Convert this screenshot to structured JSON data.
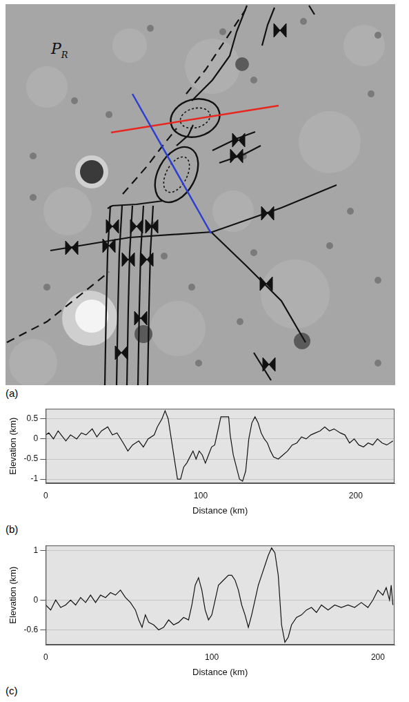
{
  "map": {
    "label": "(a)",
    "region_label": {
      "text": "P",
      "subscript": "R"
    },
    "profile_colors": [
      "#e8261e",
      "#2b3fd0"
    ]
  },
  "chart_data": [
    {
      "panel": "(b)",
      "type": "line",
      "color": "#111111",
      "grid": true,
      "x_label": "Distance (km)",
      "y_label": "Elevation (km)",
      "x": [
        0,
        2,
        5,
        8,
        10,
        13,
        16,
        20,
        23,
        26,
        30,
        33,
        36,
        40,
        43,
        46,
        50,
        53,
        56,
        60,
        63,
        66,
        70,
        72,
        75,
        77,
        79,
        81,
        83,
        85,
        87,
        89,
        91,
        93,
        95,
        97,
        99,
        101,
        103,
        105,
        107,
        109,
        111,
        113,
        116,
        118,
        119,
        121,
        123,
        125,
        127,
        129,
        131,
        133,
        135,
        137,
        139,
        141,
        143,
        145,
        147,
        150,
        153,
        156,
        159,
        162,
        165,
        168,
        171,
        174,
        177,
        180,
        183,
        186,
        190,
        193,
        196,
        199,
        202,
        205,
        208,
        211,
        214,
        217,
        220,
        224
      ],
      "values": [
        0.1,
        0.15,
        0.0,
        0.2,
        0.1,
        -0.05,
        0.1,
        0.0,
        0.15,
        0.1,
        0.25,
        0.05,
        0.2,
        0.3,
        0.1,
        0.15,
        -0.1,
        -0.3,
        -0.15,
        -0.05,
        -0.2,
        0.0,
        0.1,
        0.3,
        0.5,
        0.7,
        0.5,
        0.0,
        -0.5,
        -1.0,
        -1.0,
        -0.7,
        -0.6,
        -0.45,
        -0.3,
        -0.5,
        -0.3,
        -0.4,
        -0.6,
        -0.4,
        -0.2,
        -0.15,
        0.2,
        0.55,
        0.55,
        0.55,
        0.1,
        -0.4,
        -0.7,
        -1.0,
        -1.05,
        -0.8,
        0.0,
        0.4,
        0.55,
        0.4,
        0.15,
        0.0,
        -0.1,
        -0.3,
        -0.45,
        -0.5,
        -0.4,
        -0.3,
        -0.15,
        -0.1,
        0.05,
        0.0,
        0.1,
        0.15,
        0.2,
        0.3,
        0.2,
        0.25,
        0.15,
        0.1,
        -0.1,
        0.0,
        -0.15,
        -0.2,
        -0.1,
        -0.15,
        0.0,
        -0.1,
        -0.15,
        -0.05
      ],
      "xlim": [
        0,
        225
      ],
      "xticks": [
        0,
        100,
        200
      ],
      "ylim": [
        -1.1,
        0.75
      ],
      "yticks": [
        -1,
        -0.5,
        0,
        0.5
      ]
    },
    {
      "panel": "(c)",
      "type": "line",
      "color": "#111111",
      "grid": true,
      "x_label": "Distance (km)",
      "y_label": "Elevation (km)",
      "x": [
        0,
        3,
        6,
        9,
        12,
        15,
        18,
        21,
        24,
        27,
        30,
        33,
        36,
        39,
        42,
        45,
        48,
        51,
        54,
        56,
        58,
        60,
        62,
        65,
        68,
        71,
        74,
        77,
        80,
        83,
        86,
        88,
        90,
        92,
        94,
        96,
        98,
        100,
        102,
        104,
        107,
        110,
        112,
        114,
        116,
        118,
        120,
        122,
        124,
        126,
        128,
        130,
        132,
        134,
        136,
        138,
        140,
        141,
        142,
        144,
        146,
        148,
        151,
        154,
        157,
        160,
        163,
        166,
        170,
        174,
        178,
        182,
        186,
        190,
        194,
        197,
        200,
        203,
        205,
        207,
        208,
        209
      ],
      "values": [
        -0.1,
        -0.2,
        0.0,
        -0.15,
        -0.1,
        0.0,
        -0.1,
        0.05,
        -0.05,
        0.1,
        -0.05,
        0.1,
        0.05,
        0.15,
        0.1,
        0.2,
        0.05,
        -0.05,
        -0.2,
        -0.4,
        -0.55,
        -0.3,
        -0.45,
        -0.5,
        -0.6,
        -0.55,
        -0.4,
        -0.5,
        -0.45,
        -0.35,
        -0.4,
        -0.1,
        0.3,
        0.45,
        0.2,
        -0.2,
        -0.4,
        -0.3,
        0.0,
        0.3,
        0.4,
        0.5,
        0.5,
        0.4,
        0.2,
        -0.1,
        -0.3,
        -0.55,
        -0.3,
        0.0,
        0.3,
        0.5,
        0.7,
        0.9,
        1.05,
        0.95,
        0.5,
        0.0,
        -0.5,
        -0.85,
        -0.75,
        -0.5,
        -0.35,
        -0.3,
        -0.2,
        -0.15,
        -0.25,
        -0.1,
        -0.2,
        -0.1,
        -0.15,
        -0.1,
        -0.15,
        -0.05,
        -0.15,
        0.0,
        0.2,
        0.1,
        0.25,
        0.0,
        0.3,
        -0.1
      ],
      "xlim": [
        0,
        210
      ],
      "xticks": [
        0,
        100,
        200
      ],
      "ylim": [
        -0.9,
        1.1
      ],
      "yticks": [
        -0.6,
        0,
        1
      ]
    }
  ]
}
